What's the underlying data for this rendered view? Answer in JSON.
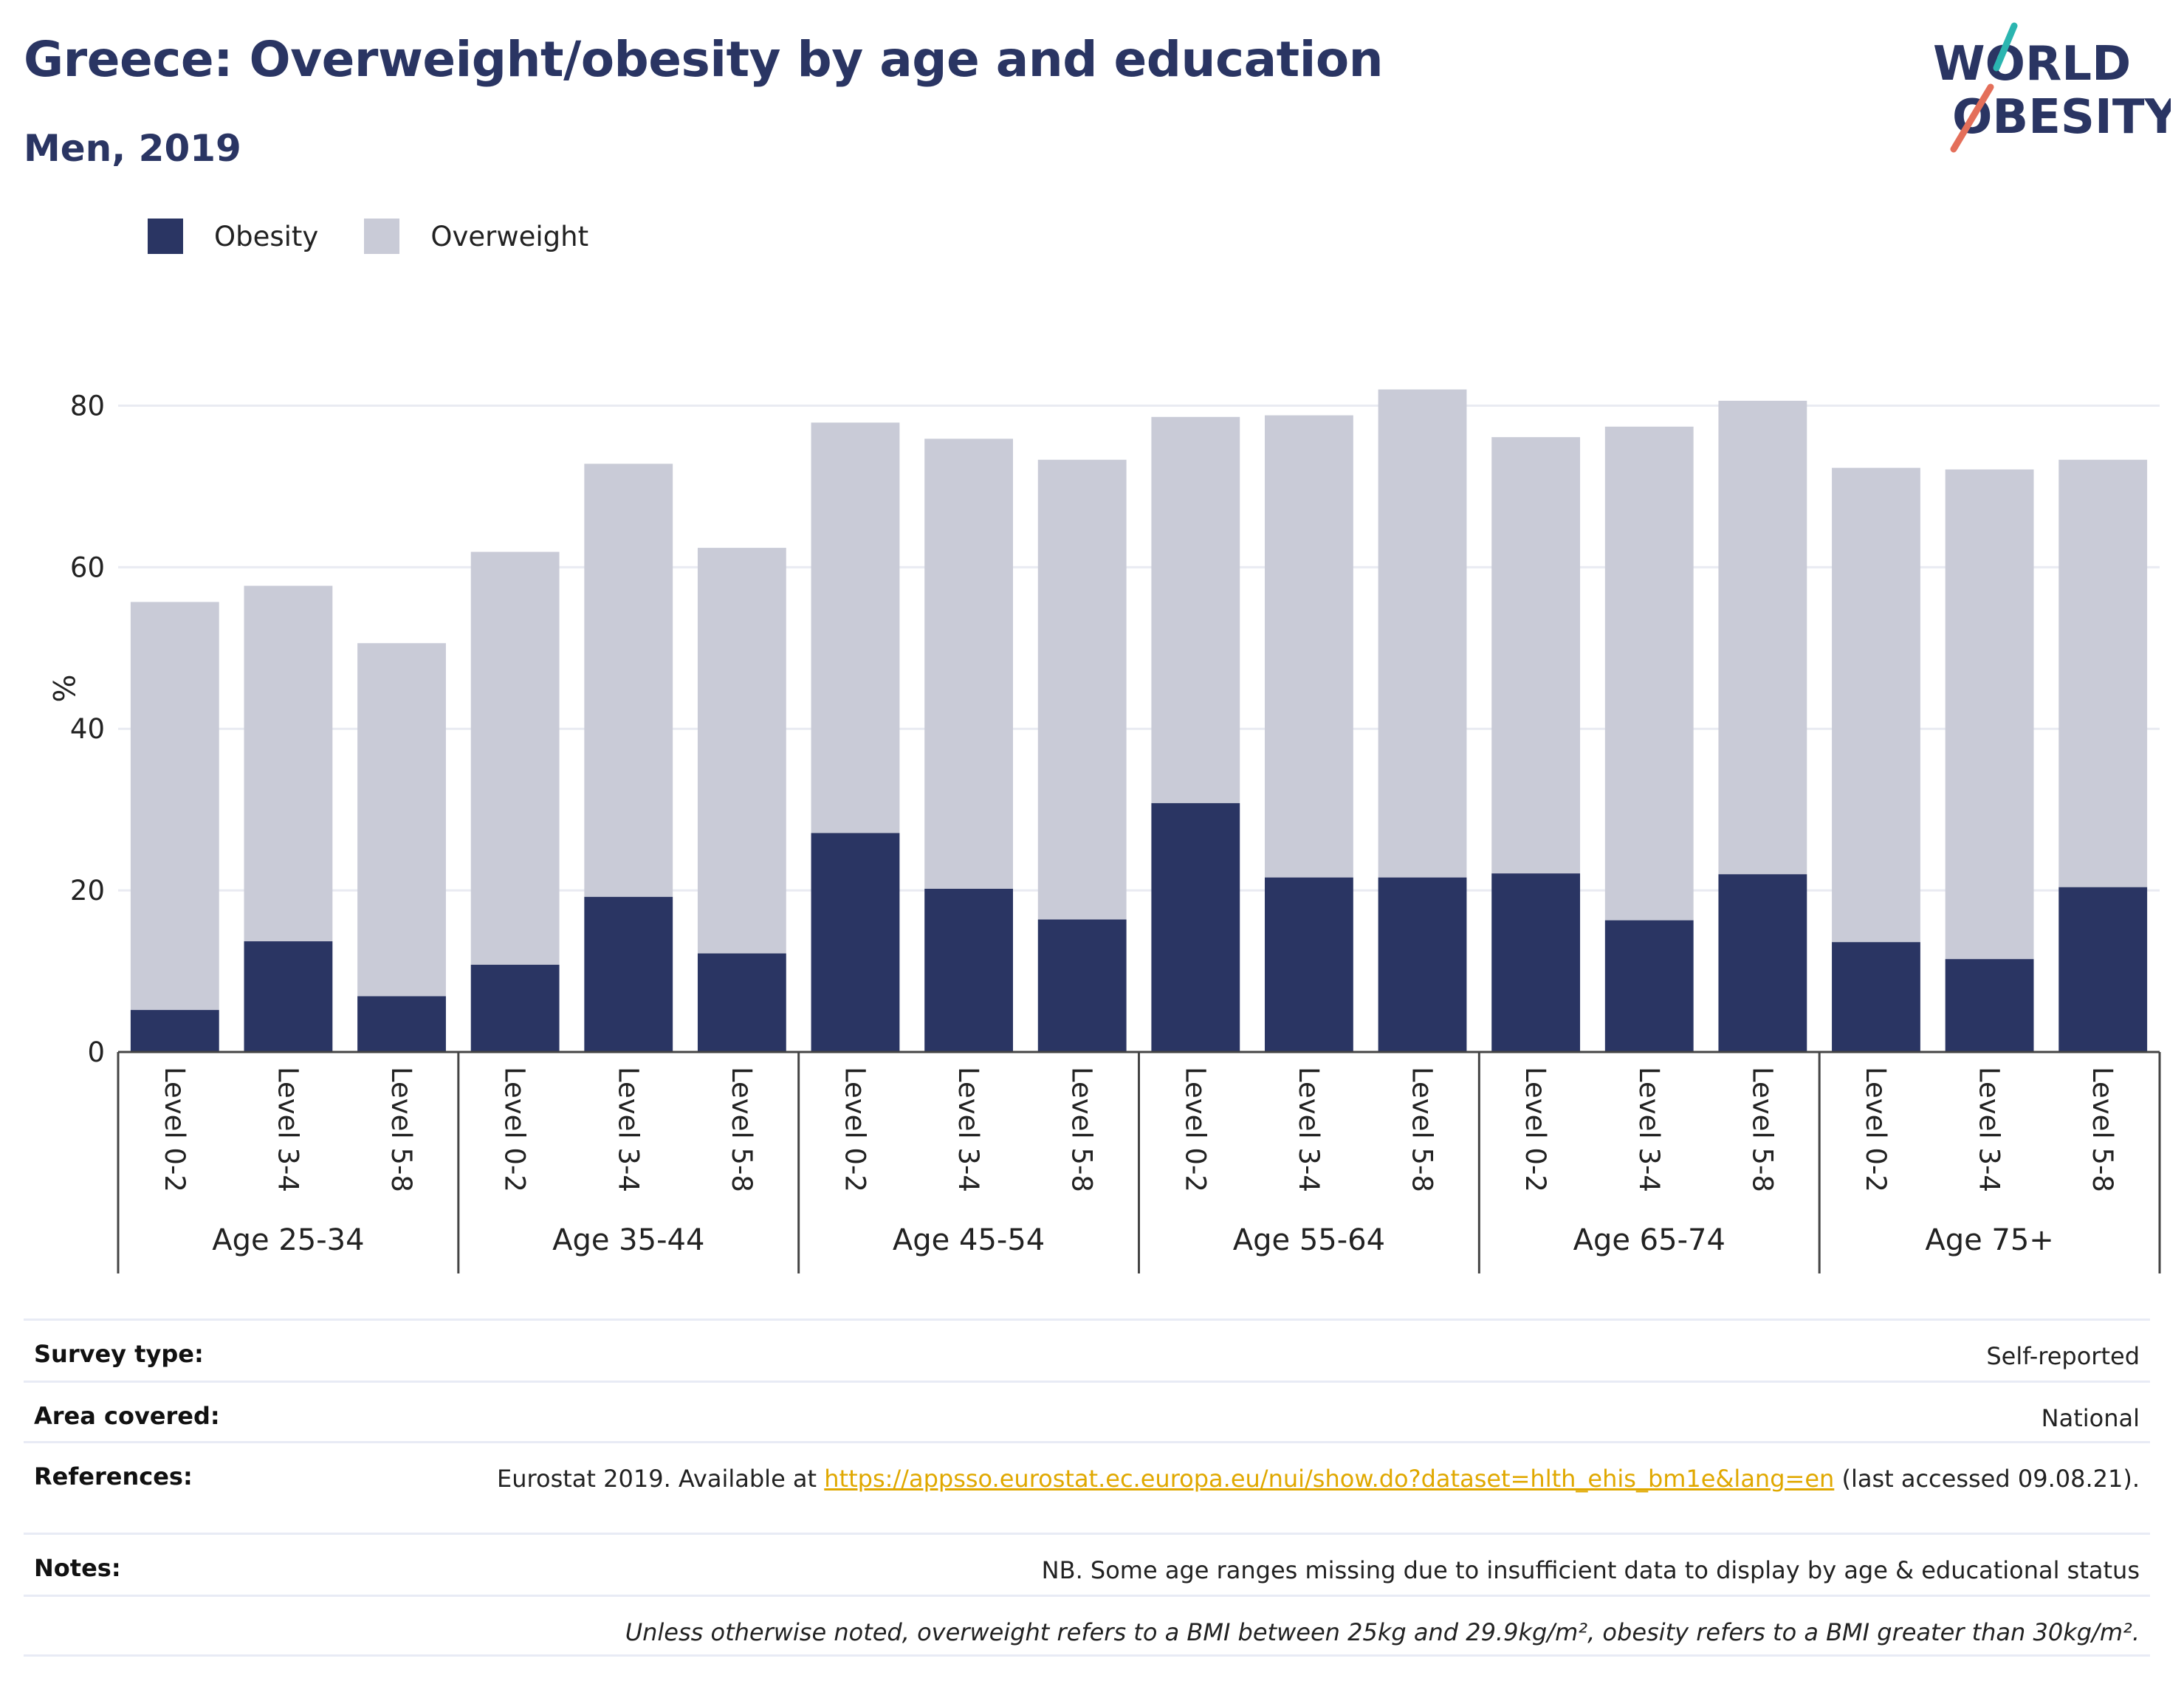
{
  "header": {
    "title": "Greece: Overweight/obesity by age and education",
    "subtitle": "Men, 2019"
  },
  "logo": {
    "line1": "WORLD",
    "line2": "OBESITY"
  },
  "colors": {
    "obesity": "#2a3563",
    "overweight": "#c9cbd7",
    "link": "#e0a800",
    "logo_teal": "#2bb5b0",
    "logo_coral": "#e46f5a"
  },
  "legend": [
    {
      "label": "Obesity",
      "color": "#2a3563"
    },
    {
      "label": "Overweight",
      "color": "#c9cbd7"
    }
  ],
  "chart_data": {
    "type": "bar",
    "stacked": true,
    "ylabel": "%",
    "ylim": [
      0,
      90
    ],
    "yticks": [
      0,
      20,
      40,
      60,
      80
    ],
    "grid": true,
    "legend_position": "top-left",
    "groups": [
      "Age 25-34",
      "Age 35-44",
      "Age 45-54",
      "Age 55-64",
      "Age 65-74",
      "Age 75+"
    ],
    "categories": [
      "Level 0-2",
      "Level 3-4",
      "Level 5-8"
    ],
    "series": [
      {
        "name": "Obesity",
        "values": [
          [
            5.2,
            13.7,
            6.9
          ],
          [
            10.8,
            19.2,
            12.2
          ],
          [
            27.1,
            20.2,
            16.4
          ],
          [
            30.8,
            21.6,
            21.6
          ],
          [
            22.1,
            16.3,
            22.0
          ],
          [
            13.6,
            11.5,
            20.4
          ]
        ]
      },
      {
        "name": "Overweight",
        "values": [
          [
            50.5,
            44.0,
            43.7
          ],
          [
            51.1,
            53.6,
            50.2
          ],
          [
            50.8,
            55.7,
            56.9
          ],
          [
            47.8,
            57.2,
            60.4
          ],
          [
            54.0,
            61.1,
            58.6
          ],
          [
            58.7,
            60.6,
            52.9
          ]
        ]
      }
    ]
  },
  "meta": {
    "survey_type_label": "Survey type:",
    "survey_type": "Self-reported",
    "area_label": "Area covered:",
    "area": "National",
    "references_label": "References:",
    "references_pre": "Eurostat 2019. Available at ",
    "references_link": "https://appsso.eurostat.ec.europa.eu/nui/show.do?dataset=hlth_ehis_bm1e&lang=en",
    "references_post": " (last accessed 09.08.21).",
    "notes_label": "Notes:",
    "notes": "NB. Some age ranges missing due to insufficient data to display by age & educational status",
    "footnote": "Unless otherwise noted, overweight refers to a BMI between 25kg and 29.9kg/m², obesity refers to a BMI greater than 30kg/m²."
  }
}
